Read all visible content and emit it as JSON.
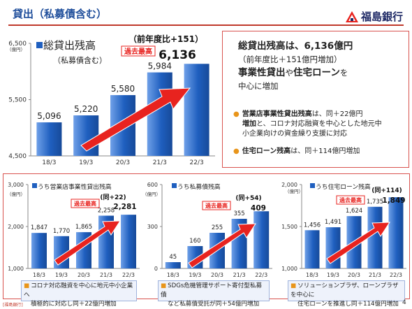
{
  "header": {
    "title": "貸出（私募債含む）",
    "bank_name": "福島銀行"
  },
  "summary": {
    "headline": "総貸出残高は、6,136億円",
    "sub": "（前年度比＋151億円増加）",
    "line2_a": "事業性貸出",
    "line2_b": "や",
    "line2_c": "住宅ローン",
    "line2_d": "を",
    "line3": "中心に増加",
    "bullet1_bold": "営業店事業性貸出残高",
    "bullet1_rest": "は、同＋22億円",
    "bullet1_line2_bold": "増加",
    "bullet1_line2_rest": "と、コロナ対応融資を中心とした地元中",
    "bullet1_line3": "小企業向けの資金繰り支援に対応",
    "bullet2_bold": "住宅ローン残高",
    "bullet2_rest": "は、同＋114億円増加"
  },
  "notes": [
    {
      "line1": "コロナ対応融資を中心に地元中小企業へ",
      "line2": "積極的に対応し同＋22億円増加"
    },
    {
      "line1": "SDGs危機管理サポート寄付型私募債",
      "line2": "など私募債受託が同＋54億円増加"
    },
    {
      "line1": "ソリューションプラザ、ローンプラザを中心に",
      "line2": "住宅ローンを推進し同＋114億円増加"
    }
  ],
  "footer": {
    "left": "[福島銀行]",
    "page": "4"
  },
  "colors": {
    "bar": "#1f5fbf",
    "bar_light": "#6fa0e8",
    "arrow": "#e8231f",
    "badge": "#e8231f",
    "accent": "#e8951b"
  },
  "chart_data": [
    {
      "type": "bar",
      "title": "総貸出残高",
      "subtitle": "（私募債含む）",
      "unit": "（億円）",
      "categories": [
        "18/3",
        "19/3",
        "20/3",
        "21/3",
        "22/3"
      ],
      "values": [
        5096,
        5220,
        5580,
        5984,
        6136
      ],
      "value_labels": [
        "5,096",
        "5,220",
        "5,580",
        "5,984",
        "6,136"
      ],
      "ylim": [
        4500,
        6500
      ],
      "yticks": [
        4500,
        5500,
        6500
      ],
      "ytick_labels": [
        "4,500",
        "5,500",
        "6,500"
      ],
      "change": "（前年度比+151）",
      "badge": "過去最高"
    },
    {
      "type": "bar",
      "title": "うち営業店事業性貸出残高",
      "unit": "（億円）",
      "categories": [
        "18/3",
        "19/3",
        "20/3",
        "21/3",
        "22/3"
      ],
      "values": [
        1847,
        1770,
        1865,
        2258,
        2281
      ],
      "value_labels": [
        "1,847",
        "1,770",
        "1,865",
        "2,258",
        "2,281"
      ],
      "ylim": [
        1000,
        3000
      ],
      "yticks": [
        1000,
        2000,
        3000
      ],
      "ytick_labels": [
        "1,000",
        "2,000",
        "3,000"
      ],
      "change": "(同+22)",
      "badge": "過去最高"
    },
    {
      "type": "bar",
      "title": "うち私募債残高",
      "unit": "（億円）",
      "categories": [
        "18/3",
        "19/3",
        "20/3",
        "21/3",
        "22/3"
      ],
      "values": [
        45,
        160,
        255,
        355,
        409
      ],
      "value_labels": [
        "45",
        "160",
        "255",
        "355",
        "409"
      ],
      "ylim": [
        0,
        600
      ],
      "yticks": [
        0,
        300,
        600
      ],
      "ytick_labels": [
        "0",
        "300",
        "600"
      ],
      "change": "(同+54)",
      "badge": "過去最高"
    },
    {
      "type": "bar",
      "title": "うち住宅ローン残高",
      "unit": "（億円）",
      "categories": [
        "18/3",
        "19/3",
        "20/3",
        "21/3",
        "22/3"
      ],
      "values": [
        1456,
        1491,
        1624,
        1735,
        1849
      ],
      "value_labels": [
        "1,456",
        "1,491",
        "1,624",
        "1,735",
        "1,849"
      ],
      "ylim": [
        1000,
        2000
      ],
      "yticks": [
        1000,
        1500,
        2000
      ],
      "ytick_labels": [
        "1,000",
        "1,500",
        "2,000"
      ],
      "change": "(同+114)",
      "badge": "過去最高"
    }
  ]
}
